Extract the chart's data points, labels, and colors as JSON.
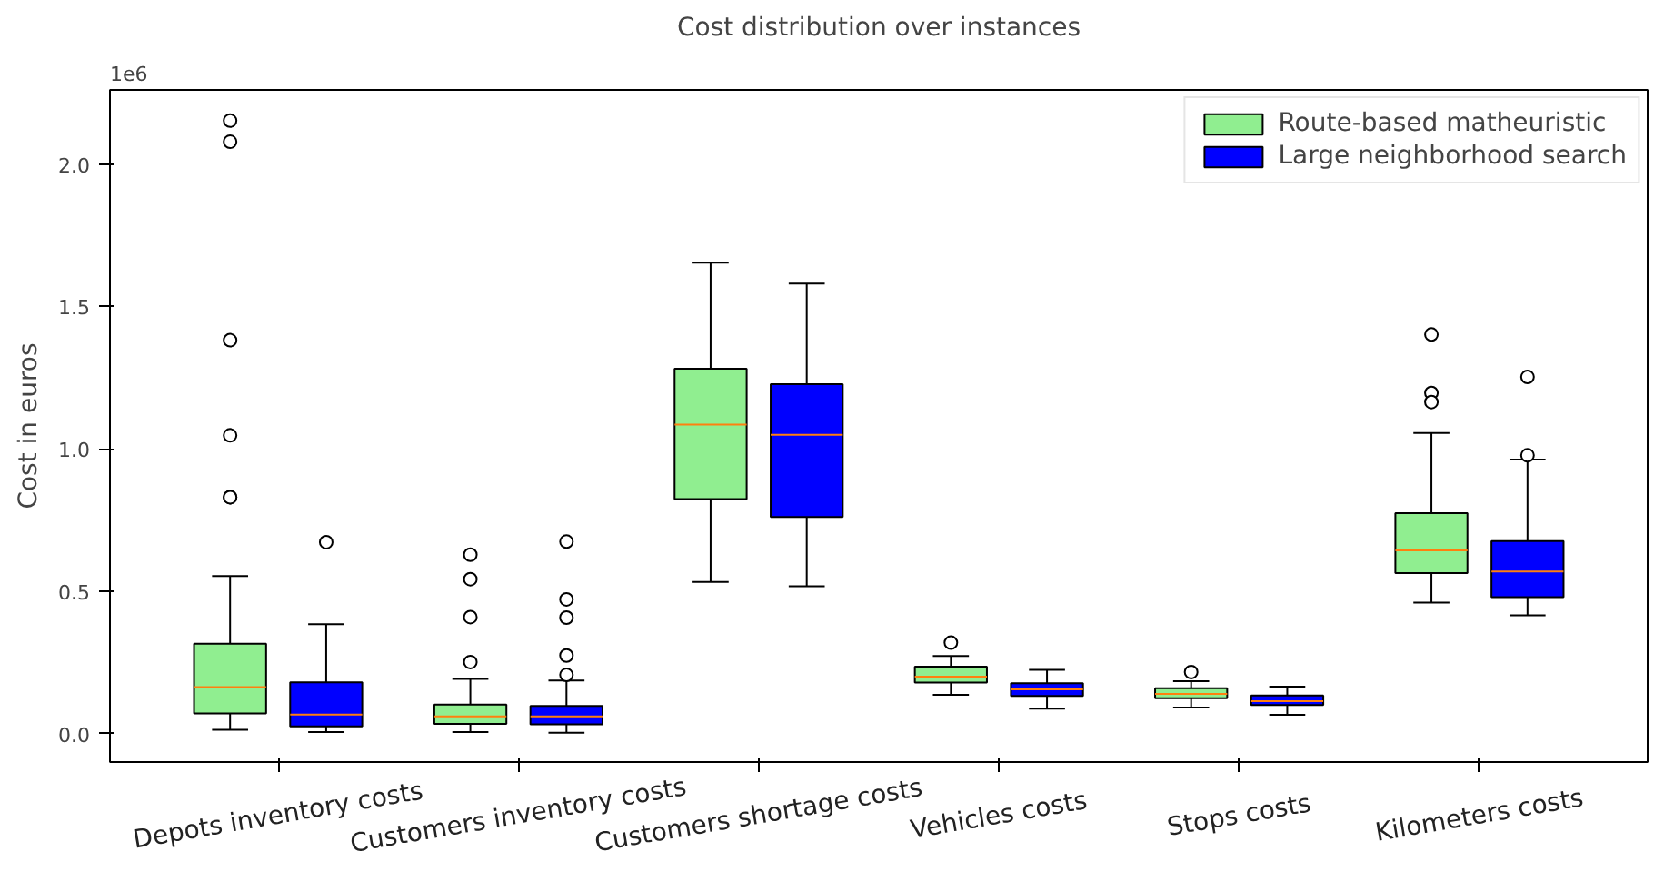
{
  "chart_data": {
    "type": "box",
    "title": "Cost distribution over instances",
    "ylabel": "Cost in euros",
    "categories": [
      "Depots inventory costs",
      "Customers inventory costs",
      "Customers shortage costs",
      "Vehicles costs",
      "Stops costs",
      "Kilometers costs"
    ],
    "ylim": [
      -0.1,
      2.26
    ],
    "yticks": [
      {
        "value": 0,
        "label": "0.0"
      },
      {
        "value": 0.5,
        "label": "0.5"
      },
      {
        "value": 1,
        "label": "1.0"
      },
      {
        "value": 1.5,
        "label": "1.5"
      },
      {
        "value": 2,
        "label": "2.0"
      }
    ],
    "annotations": [
      "1e6"
    ],
    "legend": "top right",
    "grid": false,
    "series": [
      {
        "name": "Route-based matheuristic",
        "color": "#90ee90",
        "boxes": [
          {
            "low": 0.013,
            "q1": 0.071,
            "median": 0.163,
            "q3": 0.315,
            "high": 0.553,
            "outliers": [
              2.152,
              2.078,
              1.381,
              1.047,
              0.83,
              0.83
            ]
          },
          {
            "low": 0.005,
            "q1": 0.034,
            "median": 0.06,
            "q3": 0.102,
            "high": 0.192,
            "outliers": [
              0.628,
              0.542,
              0.409,
              0.251
            ]
          },
          {
            "low": 0.532,
            "q1": 0.823,
            "median": 1.085,
            "q3": 1.281,
            "high": 1.653
          },
          {
            "low": 0.136,
            "q1": 0.179,
            "median": 0.2,
            "q3": 0.235,
            "high": 0.272,
            "outliers": [
              0.319
            ]
          },
          {
            "low": 0.091,
            "q1": 0.124,
            "median": 0.139,
            "q3": 0.159,
            "high": 0.184,
            "outliers": [
              0.216
            ]
          },
          {
            "low": 0.46,
            "q1": 0.563,
            "median": 0.643,
            "q3": 0.774,
            "high": 1.055,
            "outliers": [
              1.401,
              1.196,
              1.164
            ]
          }
        ]
      },
      {
        "name": "Large neighborhood search",
        "color": "#0000ff",
        "boxes": [
          {
            "low": 0.005,
            "q1": 0.025,
            "median": 0.067,
            "q3": 0.18,
            "high": 0.384,
            "outliers": [
              0.672
            ]
          },
          {
            "low": 0.003,
            "q1": 0.032,
            "median": 0.06,
            "q3": 0.097,
            "high": 0.186,
            "outliers": [
              0.674,
              0.471,
              0.407,
              0.274,
              0.206
            ]
          },
          {
            "low": 0.517,
            "q1": 0.76,
            "median": 1.049,
            "q3": 1.227,
            "high": 1.58
          },
          {
            "low": 0.087,
            "q1": 0.132,
            "median": 0.155,
            "q3": 0.177,
            "high": 0.224
          },
          {
            "low": 0.066,
            "q1": 0.1,
            "median": 0.114,
            "q3": 0.134,
            "high": 0.165
          },
          {
            "low": 0.415,
            "q1": 0.479,
            "median": 0.569,
            "q3": 0.676,
            "high": 0.962,
            "outliers": [
              1.252,
              0.977
            ]
          }
        ]
      }
    ]
  }
}
